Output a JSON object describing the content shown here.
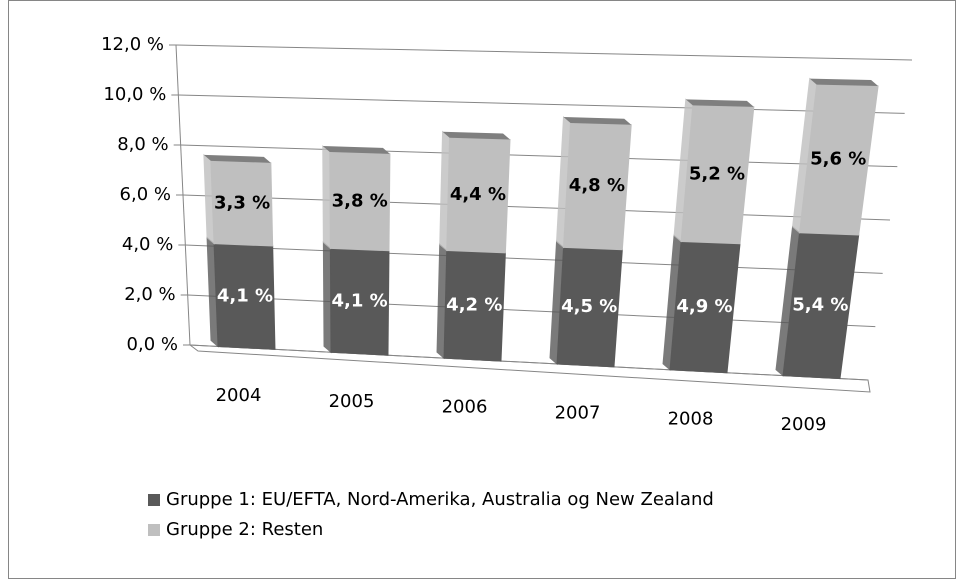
{
  "chart_data": {
    "type": "bar",
    "categories": [
      "2004",
      "2005",
      "2006",
      "2007",
      "2008",
      "2009"
    ],
    "series": [
      {
        "name": "Gruppe 1: EU/EFTA, Nord-Amerika, Australia og New Zealand",
        "color": "#595959",
        "values": [
          4.1,
          4.1,
          4.2,
          4.5,
          4.9,
          5.4
        ],
        "value_labels": [
          "4,1 %",
          "4,1 %",
          "4,2 %",
          "4,5 %",
          "4,9 %",
          "5,4 %"
        ]
      },
      {
        "name": "Gruppe 2: Resten",
        "color": "#bfbfbf",
        "values": [
          3.3,
          3.8,
          4.4,
          4.8,
          5.2,
          5.6
        ],
        "value_labels": [
          "3,3 %",
          "3,8 %",
          "4,4 %",
          "4,8 %",
          "5,2 %",
          "5,6 %"
        ]
      }
    ],
    "ylim": [
      0,
      12
    ],
    "yticks": [
      {
        "value": 0,
        "label": "0,0 %"
      },
      {
        "value": 2,
        "label": "2,0 %"
      },
      {
        "value": 4,
        "label": "4,0 %"
      },
      {
        "value": 6,
        "label": "6,0 %"
      },
      {
        "value": 8,
        "label": "8,0 %"
      },
      {
        "value": 10,
        "label": "10,0 %"
      },
      {
        "value": 12,
        "label": "12,0 %"
      }
    ],
    "grid": true,
    "stacked": true
  }
}
